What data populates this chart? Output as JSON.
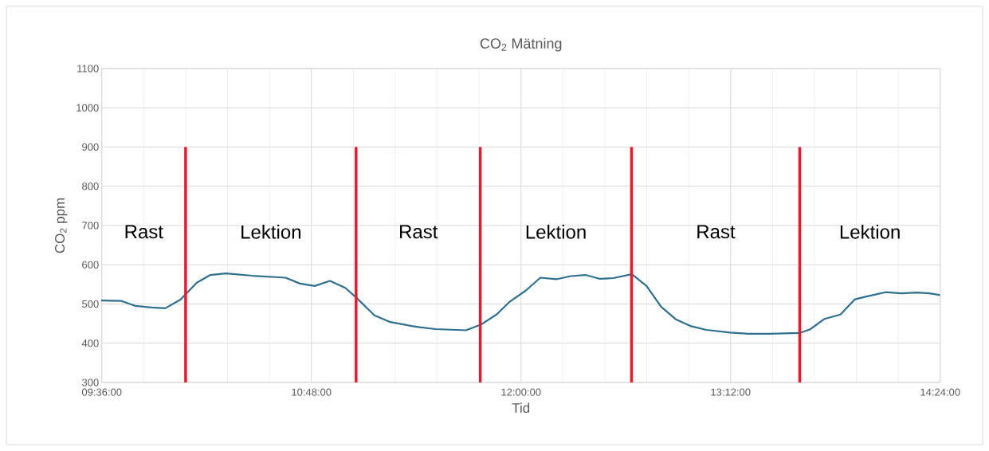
{
  "chart_data": {
    "type": "line",
    "title": "CO$_{2}$ Mätning",
    "xlabel": "Tid",
    "ylabel": "CO$_{2}$  ppm",
    "x": [
      9.6,
      9.71,
      9.793,
      9.884,
      9.963,
      10.051,
      10.143,
      10.222,
      10.31,
      10.462,
      10.652,
      10.735,
      10.819,
      10.906,
      10.994,
      11.055,
      11.161,
      11.252,
      11.374,
      11.419,
      11.511,
      11.685,
      11.769,
      11.86,
      11.936,
      12.027,
      12.111,
      12.202,
      12.286,
      12.369,
      12.453,
      12.529,
      12.635,
      12.719,
      12.802,
      12.886,
      12.97,
      13.061,
      13.198,
      13.304,
      13.426,
      13.593,
      13.654,
      13.738,
      13.829,
      13.912,
      13.988,
      14.087,
      14.178,
      14.269,
      14.338,
      14.395
    ],
    "series": [
      {
        "color": "#2f6f8f",
        "values": [
          509,
          508,
          495,
          491,
          489,
          511,
          554,
          574,
          578,
          572,
          567,
          552,
          546,
          559,
          541,
          517,
          471,
          454,
          444,
          441,
          436,
          433,
          447,
          473,
          506,
          534,
          567,
          563,
          571,
          574,
          564,
          566,
          576,
          546,
          493,
          461,
          444,
          434,
          427,
          424,
          424,
          426,
          435,
          462,
          473,
          512,
          520,
          530,
          527,
          529,
          527,
          523
        ]
      }
    ],
    "xlim": [
      9.6,
      14.4
    ],
    "xticks": [
      {
        "value": 9.6,
        "label": "09:36:00"
      },
      {
        "value": 10.8,
        "label": "10:48:00"
      },
      {
        "value": 12.0,
        "label": "12:00:00"
      },
      {
        "value": 13.2,
        "label": "13:12:00"
      },
      {
        "value": 14.4,
        "label": "14:24:00"
      }
    ],
    "ylim": [
      300,
      1100
    ],
    "yticks": [
      300,
      400,
      500,
      600,
      700,
      800,
      900,
      1000,
      1100
    ],
    "grid": true,
    "marker": "none",
    "line_style": "solid",
    "ref_lines": [
      {
        "axis": "x",
        "value": 10.08,
        "color": "#e8192c"
      },
      {
        "axis": "x",
        "value": 11.056,
        "color": "#e8192c"
      },
      {
        "axis": "x",
        "value": 11.767,
        "color": "#e8192c"
      },
      {
        "axis": "x",
        "value": 12.633,
        "color": "#e8192c"
      },
      {
        "axis": "x",
        "value": 13.596,
        "color": "#e8192c"
      }
    ],
    "annotations": [
      "Rast",
      "Lektion",
      "Rast",
      "Lektion",
      "Rast",
      "Lektion"
    ]
  }
}
